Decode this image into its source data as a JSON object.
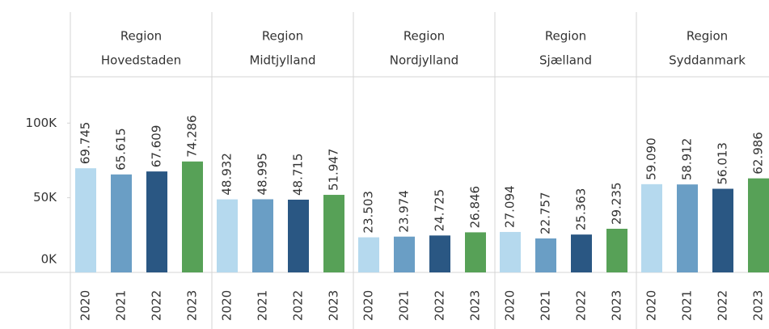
{
  "chart_data": {
    "type": "bar",
    "categories": [
      [
        "Region",
        "Hovedstaden"
      ],
      [
        "Region",
        "Midtjylland"
      ],
      [
        "Region",
        "Nordjylland"
      ],
      [
        "Region",
        "Sjælland"
      ],
      [
        "Region",
        "Syddanmark"
      ]
    ],
    "series": [
      {
        "name": "2020",
        "color": "#b5d9ee",
        "values": [
          69745,
          48932,
          23503,
          27094,
          59090
        ],
        "value_labels": [
          "69.745",
          "48.932",
          "23.503",
          "27.094",
          "59.090"
        ]
      },
      {
        "name": "2021",
        "color": "#6a9ec5",
        "values": [
          65615,
          48995,
          23974,
          22757,
          58912
        ],
        "value_labels": [
          "65.615",
          "48.995",
          "23.974",
          "22.757",
          "58.912"
        ]
      },
      {
        "name": "2022",
        "color": "#2a5783",
        "values": [
          67609,
          48715,
          24725,
          25363,
          56013
        ],
        "value_labels": [
          "67.609",
          "48.715",
          "24.725",
          "25.363",
          "56.013"
        ]
      },
      {
        "name": "2023",
        "color": "#57a157",
        "values": [
          74286,
          51947,
          26846,
          29235,
          62986
        ],
        "value_labels": [
          "74.286",
          "51.947",
          "26.846",
          "29.235",
          "62.986"
        ]
      }
    ],
    "ylim": [
      0,
      131000
    ],
    "yticks": [
      {
        "value": 0,
        "label": "0K"
      },
      {
        "value": 50000,
        "label": "50K"
      },
      {
        "value": 100000,
        "label": "100K"
      }
    ],
    "grid": false
  }
}
